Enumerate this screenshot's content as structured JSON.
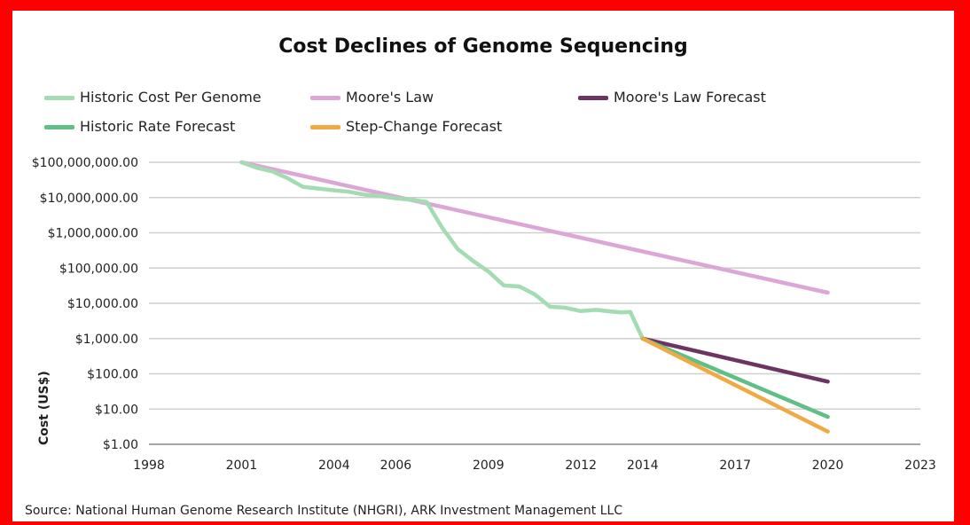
{
  "chart_data": {
    "type": "line",
    "title": "Cost Declines of Genome Sequencing",
    "xlabel": "",
    "ylabel": "Cost (US$)",
    "y_scale": "log",
    "ylim": [
      1,
      100000000
    ],
    "xlim": [
      1998,
      2023
    ],
    "x_ticks": [
      1998,
      2001,
      2004,
      2006,
      2009,
      2012,
      2014,
      2017,
      2020,
      2023
    ],
    "y_ticks": [
      1,
      10,
      100,
      1000,
      10000,
      100000,
      1000000,
      10000000,
      100000000
    ],
    "y_tick_labels": [
      "$1.00",
      "$10.00",
      "$100.00",
      "$1,000.00",
      "$10,000.00",
      "$100,000.00",
      "$1,000,000.00",
      "$10,000,000.00",
      "$100,000,000.00"
    ],
    "grid": "horizontal",
    "legend_position": "top",
    "series": [
      {
        "name": "Historic Cost Per Genome",
        "color": "#a3dbb2",
        "x": [
          2001.0,
          2001.5,
          2002.0,
          2002.5,
          2003.0,
          2003.5,
          2004.0,
          2004.5,
          2005.0,
          2005.5,
          2006.0,
          2006.5,
          2007.0,
          2007.5,
          2008.0,
          2008.5,
          2009.0,
          2009.5,
          2010.0,
          2010.5,
          2011.0,
          2011.5,
          2012.0,
          2012.5,
          2013.0,
          2013.3,
          2013.6,
          2014.0
        ],
        "y": [
          100000000,
          70000000,
          55000000,
          35000000,
          20000000,
          18000000,
          16000000,
          14500000,
          12000000,
          11000000,
          9500000,
          8700000,
          7500000,
          1400000,
          350000,
          160000,
          80000,
          32000,
          30000,
          18000,
          8000,
          7500,
          6000,
          6500,
          5800,
          5500,
          5700,
          1000
        ]
      },
      {
        "name": "Moore's Law",
        "color": "#dca7d6",
        "x": [
          2001.0,
          2020.0
        ],
        "y": [
          100000000,
          20000
        ]
      },
      {
        "name": "Moore's Law Forecast",
        "color": "#6b3461",
        "x": [
          2014.0,
          2020.0
        ],
        "y": [
          1000,
          60
        ]
      },
      {
        "name": "Historic Rate Forecast",
        "color": "#5fbf84",
        "x": [
          2014.0,
          2020.0
        ],
        "y": [
          1000,
          6
        ]
      },
      {
        "name": "Step-Change Forecast",
        "color": "#f0a945",
        "x": [
          2014.0,
          2020.0
        ],
        "y": [
          1000,
          2.3
        ]
      }
    ]
  },
  "source": "Source: National Human Genome Research Institute (NHGRI), ARK Investment Management LLC"
}
